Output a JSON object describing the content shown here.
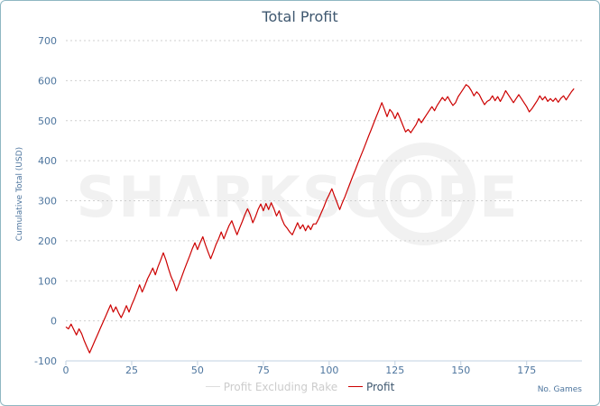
{
  "chart_data": {
    "type": "line",
    "title": "Total Profit",
    "xlabel": "No. Games",
    "ylabel": "Cumulative Total (USD)",
    "xlim": [
      0,
      196
    ],
    "ylim": [
      -100,
      700
    ],
    "xticks": [
      0,
      25,
      50,
      75,
      100,
      125,
      150,
      175
    ],
    "yticks": [
      -100,
      0,
      100,
      200,
      300,
      400,
      500,
      600,
      700
    ],
    "grid": true,
    "legend_position": "bottom",
    "watermark": "SHARKSCOPE",
    "series": [
      {
        "name": "Profit Excluding Rake",
        "color": "#dddddd",
        "points": []
      },
      {
        "name": "Profit",
        "color": "#cc0000",
        "points": [
          [
            0,
            -15
          ],
          [
            1,
            -20
          ],
          [
            2,
            -8
          ],
          [
            3,
            -22
          ],
          [
            4,
            -35
          ],
          [
            5,
            -20
          ],
          [
            6,
            -32
          ],
          [
            7,
            -50
          ],
          [
            8,
            -65
          ],
          [
            9,
            -80
          ],
          [
            10,
            -65
          ],
          [
            11,
            -50
          ],
          [
            12,
            -35
          ],
          [
            13,
            -20
          ],
          [
            14,
            -5
          ],
          [
            15,
            10
          ],
          [
            16,
            25
          ],
          [
            17,
            40
          ],
          [
            18,
            22
          ],
          [
            19,
            35
          ],
          [
            20,
            20
          ],
          [
            21,
            8
          ],
          [
            22,
            22
          ],
          [
            23,
            38
          ],
          [
            24,
            22
          ],
          [
            25,
            40
          ],
          [
            26,
            55
          ],
          [
            27,
            72
          ],
          [
            28,
            90
          ],
          [
            29,
            72
          ],
          [
            30,
            88
          ],
          [
            31,
            105
          ],
          [
            32,
            118
          ],
          [
            33,
            132
          ],
          [
            34,
            115
          ],
          [
            35,
            135
          ],
          [
            36,
            152
          ],
          [
            37,
            170
          ],
          [
            38,
            152
          ],
          [
            39,
            130
          ],
          [
            40,
            110
          ],
          [
            41,
            95
          ],
          [
            42,
            75
          ],
          [
            43,
            92
          ],
          [
            44,
            110
          ],
          [
            45,
            128
          ],
          [
            46,
            145
          ],
          [
            47,
            162
          ],
          [
            48,
            180
          ],
          [
            49,
            195
          ],
          [
            50,
            178
          ],
          [
            51,
            195
          ],
          [
            52,
            210
          ],
          [
            53,
            190
          ],
          [
            54,
            172
          ],
          [
            55,
            155
          ],
          [
            56,
            172
          ],
          [
            57,
            190
          ],
          [
            58,
            205
          ],
          [
            59,
            222
          ],
          [
            60,
            205
          ],
          [
            61,
            222
          ],
          [
            62,
            238
          ],
          [
            63,
            250
          ],
          [
            64,
            232
          ],
          [
            65,
            215
          ],
          [
            66,
            232
          ],
          [
            67,
            248
          ],
          [
            68,
            265
          ],
          [
            69,
            280
          ],
          [
            70,
            265
          ],
          [
            71,
            245
          ],
          [
            72,
            260
          ],
          [
            73,
            278
          ],
          [
            74,
            292
          ],
          [
            75,
            275
          ],
          [
            76,
            293
          ],
          [
            77,
            278
          ],
          [
            78,
            295
          ],
          [
            79,
            280
          ],
          [
            80,
            262
          ],
          [
            81,
            275
          ],
          [
            82,
            255
          ],
          [
            83,
            240
          ],
          [
            84,
            232
          ],
          [
            85,
            222
          ],
          [
            86,
            215
          ],
          [
            87,
            230
          ],
          [
            88,
            245
          ],
          [
            89,
            230
          ],
          [
            90,
            240
          ],
          [
            91,
            225
          ],
          [
            92,
            238
          ],
          [
            93,
            228
          ],
          [
            94,
            242
          ],
          [
            95,
            242
          ],
          [
            96,
            255
          ],
          [
            97,
            270
          ],
          [
            98,
            285
          ],
          [
            99,
            302
          ],
          [
            100,
            315
          ],
          [
            101,
            330
          ],
          [
            102,
            312
          ],
          [
            103,
            295
          ],
          [
            104,
            278
          ],
          [
            105,
            295
          ],
          [
            106,
            310
          ],
          [
            107,
            328
          ],
          [
            108,
            345
          ],
          [
            109,
            362
          ],
          [
            110,
            378
          ],
          [
            111,
            395
          ],
          [
            112,
            412
          ],
          [
            113,
            428
          ],
          [
            114,
            445
          ],
          [
            115,
            462
          ],
          [
            116,
            478
          ],
          [
            117,
            495
          ],
          [
            118,
            512
          ],
          [
            119,
            528
          ],
          [
            120,
            545
          ],
          [
            121,
            528
          ],
          [
            122,
            510
          ],
          [
            123,
            528
          ],
          [
            124,
            520
          ],
          [
            125,
            505
          ],
          [
            126,
            520
          ],
          [
            127,
            505
          ],
          [
            128,
            488
          ],
          [
            129,
            472
          ],
          [
            130,
            478
          ],
          [
            131,
            470
          ],
          [
            132,
            480
          ],
          [
            133,
            490
          ],
          [
            134,
            505
          ],
          [
            135,
            495
          ],
          [
            136,
            505
          ],
          [
            137,
            515
          ],
          [
            138,
            525
          ],
          [
            139,
            535
          ],
          [
            140,
            525
          ],
          [
            141,
            538
          ],
          [
            142,
            548
          ],
          [
            143,
            558
          ],
          [
            144,
            550
          ],
          [
            145,
            560
          ],
          [
            146,
            548
          ],
          [
            147,
            538
          ],
          [
            148,
            545
          ],
          [
            149,
            560
          ],
          [
            150,
            570
          ],
          [
            151,
            580
          ],
          [
            152,
            590
          ],
          [
            153,
            585
          ],
          [
            154,
            575
          ],
          [
            155,
            562
          ],
          [
            156,
            572
          ],
          [
            157,
            565
          ],
          [
            158,
            552
          ],
          [
            159,
            540
          ],
          [
            160,
            548
          ],
          [
            161,
            552
          ],
          [
            162,
            562
          ],
          [
            163,
            550
          ],
          [
            164,
            560
          ],
          [
            165,
            548
          ],
          [
            166,
            560
          ],
          [
            167,
            575
          ],
          [
            168,
            565
          ],
          [
            169,
            555
          ],
          [
            170,
            545
          ],
          [
            171,
            555
          ],
          [
            172,
            565
          ],
          [
            173,
            555
          ],
          [
            174,
            545
          ],
          [
            175,
            535
          ],
          [
            176,
            522
          ],
          [
            177,
            530
          ],
          [
            178,
            540
          ],
          [
            179,
            550
          ],
          [
            180,
            562
          ],
          [
            181,
            552
          ],
          [
            182,
            560
          ],
          [
            183,
            548
          ],
          [
            184,
            555
          ],
          [
            185,
            548
          ],
          [
            186,
            556
          ],
          [
            187,
            546
          ],
          [
            188,
            556
          ],
          [
            189,
            562
          ],
          [
            190,
            552
          ],
          [
            191,
            562
          ],
          [
            192,
            572
          ],
          [
            193,
            580
          ]
        ]
      }
    ]
  }
}
